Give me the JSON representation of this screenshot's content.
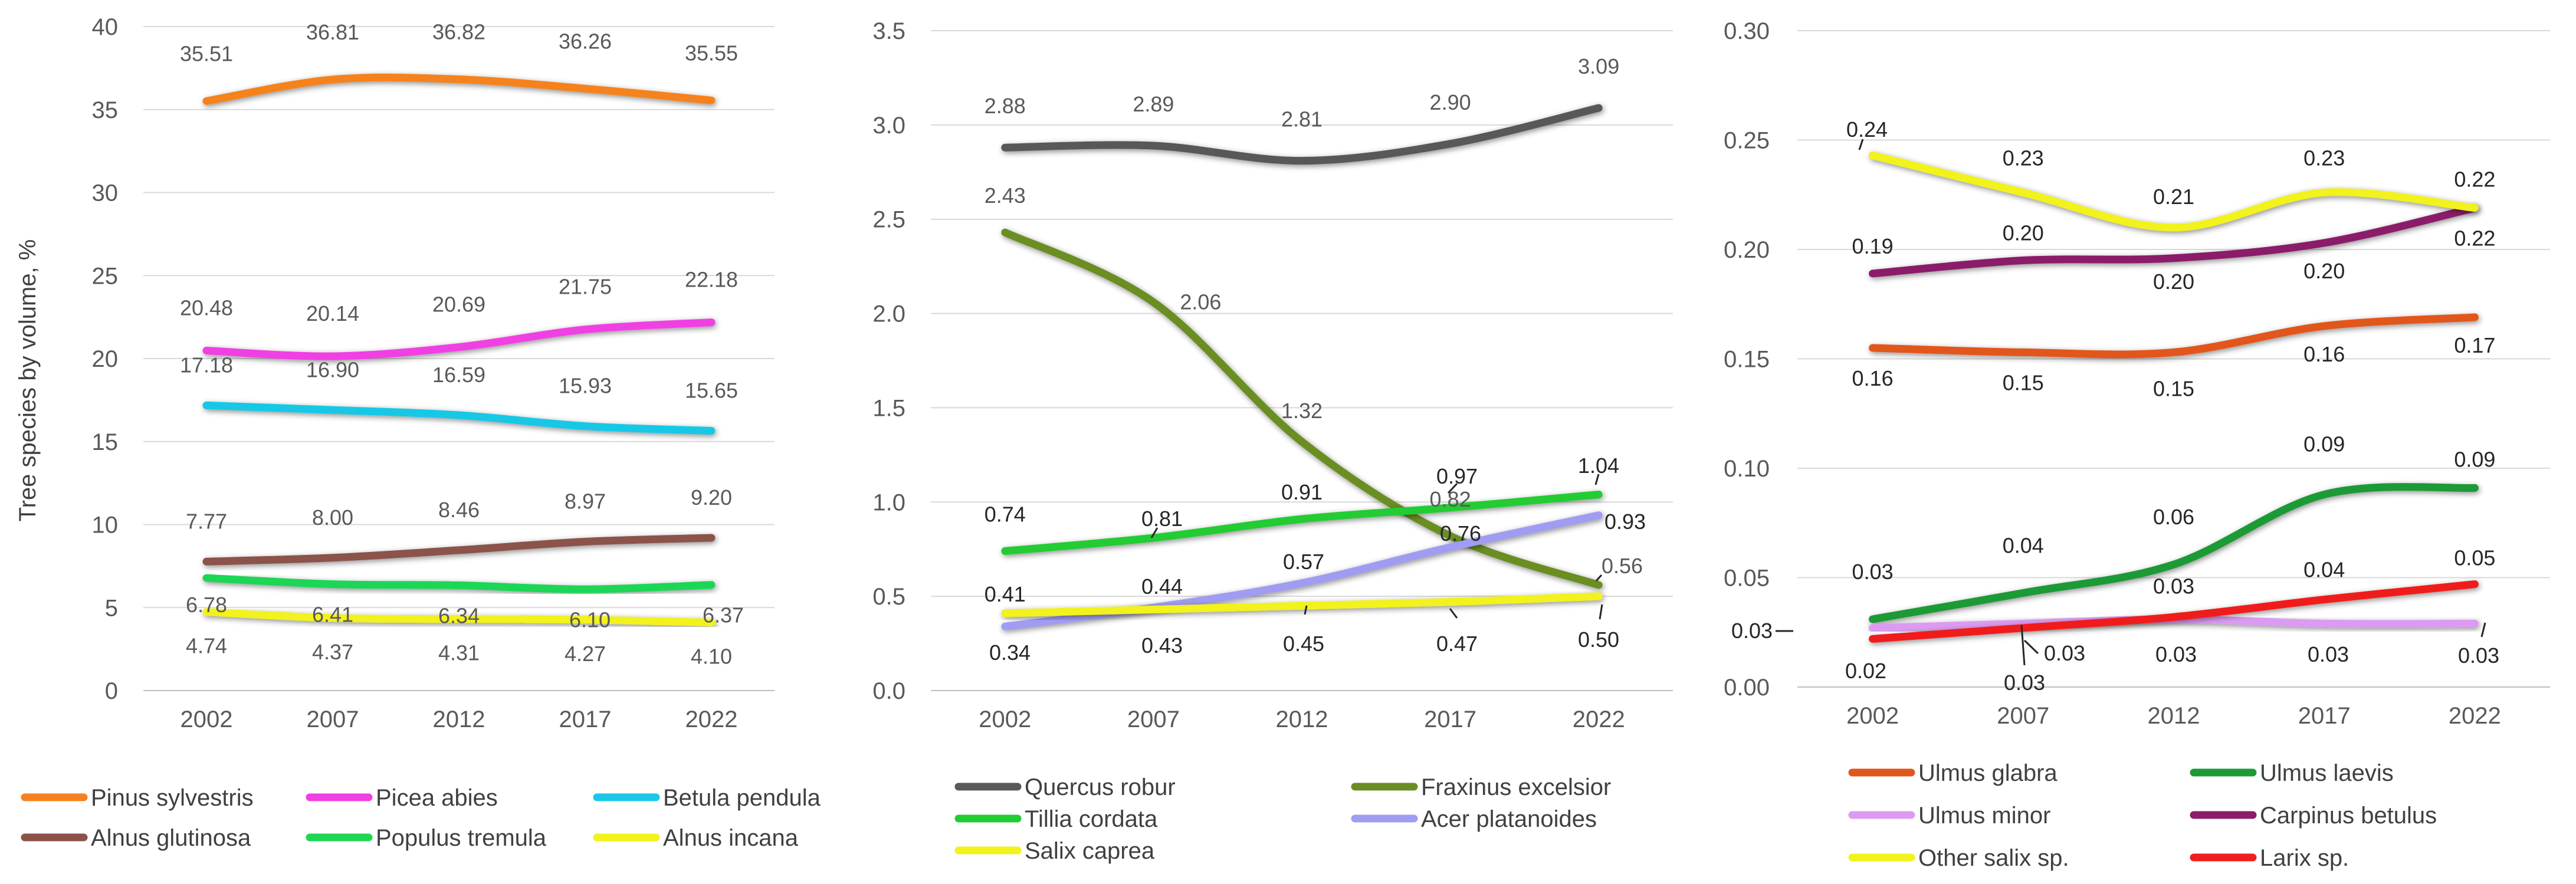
{
  "chart_data": [
    {
      "type": "line",
      "title": "",
      "xlabel": "",
      "ylabel": "Tree species by volume, %",
      "categories": [
        "2002",
        "2007",
        "2012",
        "2017",
        "2022"
      ],
      "ylim": [
        0,
        40
      ],
      "yticks": [
        "0",
        "5",
        "10",
        "15",
        "20",
        "25",
        "30",
        "35",
        "40"
      ],
      "grid": "horizontal",
      "legend": "bottom",
      "label_color": "#595959",
      "series": [
        {
          "name": "Pinus sylvestris",
          "color": "#F5821F",
          "values": [
            35.51,
            36.81,
            36.82,
            36.26,
            35.55
          ],
          "labels": [
            "35.51",
            "36.81",
            "36.82",
            "36.26",
            "35.55"
          ],
          "label_pos": "above"
        },
        {
          "name": "Picea abies",
          "color": "#F03FE3",
          "values": [
            20.48,
            20.14,
            20.69,
            21.75,
            22.18
          ],
          "labels": [
            "20.48",
            "20.14",
            "20.69",
            "21.75",
            "22.18"
          ],
          "label_pos": "above"
        },
        {
          "name": "Betula pendula",
          "color": "#18C8E6",
          "values": [
            17.18,
            16.9,
            16.59,
            15.93,
            15.65
          ],
          "labels": [
            "17.18",
            "16.90",
            "16.59",
            "15.93",
            "15.65"
          ],
          "label_pos": "above"
        },
        {
          "name": "Alnus glutinosa",
          "color": "#8B5348",
          "values": [
            7.77,
            8.0,
            8.46,
            8.97,
            9.2
          ],
          "labels": [
            "7.77",
            "8.00",
            "8.46",
            "8.97",
            "9.20"
          ],
          "label_pos": "above"
        },
        {
          "name": "Populus tremula",
          "color": "#1FD655",
          "values": [
            6.78,
            6.41,
            6.34,
            6.1,
            6.37
          ],
          "labels": [
            "6.78",
            "6.41",
            "6.34",
            "6.10",
            "6.37"
          ],
          "label_pos": "below"
        },
        {
          "name": "Alnus incana",
          "color": "#F2F21C",
          "values": [
            4.74,
            4.37,
            4.31,
            4.27,
            4.1
          ],
          "labels": [
            "4.74",
            "4.37",
            "4.31",
            "4.27",
            "4.10"
          ],
          "label_pos": "below"
        }
      ]
    },
    {
      "type": "line",
      "title": "",
      "xlabel": "",
      "ylabel": "",
      "categories": [
        "2002",
        "2007",
        "2012",
        "2017",
        "2022"
      ],
      "ylim": [
        0,
        3.5
      ],
      "yticks": [
        "0.0",
        "0.5",
        "1.0",
        "1.5",
        "2.0",
        "2.5",
        "3.0",
        "3.5"
      ],
      "grid": "horizontal",
      "legend": "bottom",
      "series": [
        {
          "name": "Quercus robur",
          "color": "#595959",
          "values": [
            2.88,
            2.89,
            2.81,
            2.9,
            3.09
          ],
          "labels": [
            "2.88",
            "2.89",
            "2.81",
            "2.90",
            "3.09"
          ],
          "label_pos": "above",
          "label_color": "#595959"
        },
        {
          "name": "Fraxinus excelsior",
          "color": "#6B8E23",
          "values": [
            2.43,
            2.06,
            1.32,
            0.82,
            0.56
          ],
          "labels": [
            "2.43",
            "2.06",
            "1.32",
            "0.82",
            "0.56"
          ],
          "label_pos": "above",
          "label_color": "#595959"
        },
        {
          "name": "Tillia cordata",
          "color": "#22CC33",
          "values": [
            0.74,
            0.81,
            0.91,
            0.97,
            1.04
          ],
          "labels": [
            "0.74",
            "0.81",
            "0.91",
            "0.97",
            "1.04"
          ],
          "label_pos": "above",
          "label_color": "#262626"
        },
        {
          "name": "Acer platanoides",
          "color": "#A09CF2",
          "values": [
            0.34,
            0.44,
            0.57,
            0.76,
            0.93
          ],
          "labels": [
            "0.34",
            "0.44",
            "0.57",
            "0.76",
            "0.93"
          ],
          "label_pos": "above",
          "label_color": "#262626"
        },
        {
          "name": "Salix caprea",
          "color": "#F2F21C",
          "values": [
            0.41,
            0.43,
            0.45,
            0.47,
            0.5
          ],
          "labels": [
            "0.41",
            "0.43",
            "0.45",
            "0.47",
            "0.50"
          ],
          "label_pos": "below",
          "label_color": "#262626"
        }
      ]
    },
    {
      "type": "line",
      "title": "",
      "xlabel": "",
      "ylabel": "",
      "categories": [
        "2002",
        "2007",
        "2012",
        "2017",
        "2022"
      ],
      "ylim": [
        0,
        0.3
      ],
      "yticks": [
        "0.00",
        "0.05",
        "0.10",
        "0.15",
        "0.20",
        "0.25",
        "0.30"
      ],
      "grid": "horizontal",
      "legend": "bottom",
      "label_color": "#262626",
      "series": [
        {
          "name": "Ulmus glabra",
          "color": "#E2561C",
          "values": [
            0.155,
            0.153,
            0.153,
            0.165,
            0.169
          ],
          "labels": [
            "0.16",
            "0.15",
            "0.15",
            "0.16",
            "0.17"
          ],
          "label_pos": "below"
        },
        {
          "name": "Ulmus laevis",
          "color": "#1E9A35",
          "values": [
            0.031,
            0.043,
            0.056,
            0.088,
            0.091
          ],
          "labels": [
            "0.03",
            "0.04",
            "0.06",
            "0.09",
            "0.09"
          ],
          "label_pos": "above"
        },
        {
          "name": "Ulmus minor",
          "color": "#DC9BF2",
          "values": [
            0.027,
            0.029,
            0.031,
            0.029,
            0.029
          ],
          "labels": [
            "0.03",
            "0.03",
            "0.03",
            "0.03",
            "0.03"
          ],
          "label_pos": "below"
        },
        {
          "name": "Carpinus betulus",
          "color": "#8B1D6B",
          "values": [
            0.189,
            0.195,
            0.196,
            0.203,
            0.219
          ],
          "labels": [
            "0.19",
            "0.20",
            "0.20",
            "0.20",
            "0.22"
          ],
          "label_pos": "mixed"
        },
        {
          "name": "Other salix sp.",
          "color": "#F2F21C",
          "values": [
            0.243,
            0.226,
            0.21,
            0.226,
            0.219
          ],
          "labels": [
            "0.24",
            "0.23",
            "0.21",
            "0.23",
            "0.22"
          ],
          "label_pos": "above"
        },
        {
          "name": "Larix sp.",
          "color": "#F01E1E",
          "values": [
            0.022,
            0.027,
            0.032,
            0.04,
            0.047
          ],
          "labels": [
            "0.02",
            "0.03",
            "0.03",
            "0.04",
            "0.05"
          ],
          "label_pos": "above"
        }
      ]
    }
  ]
}
